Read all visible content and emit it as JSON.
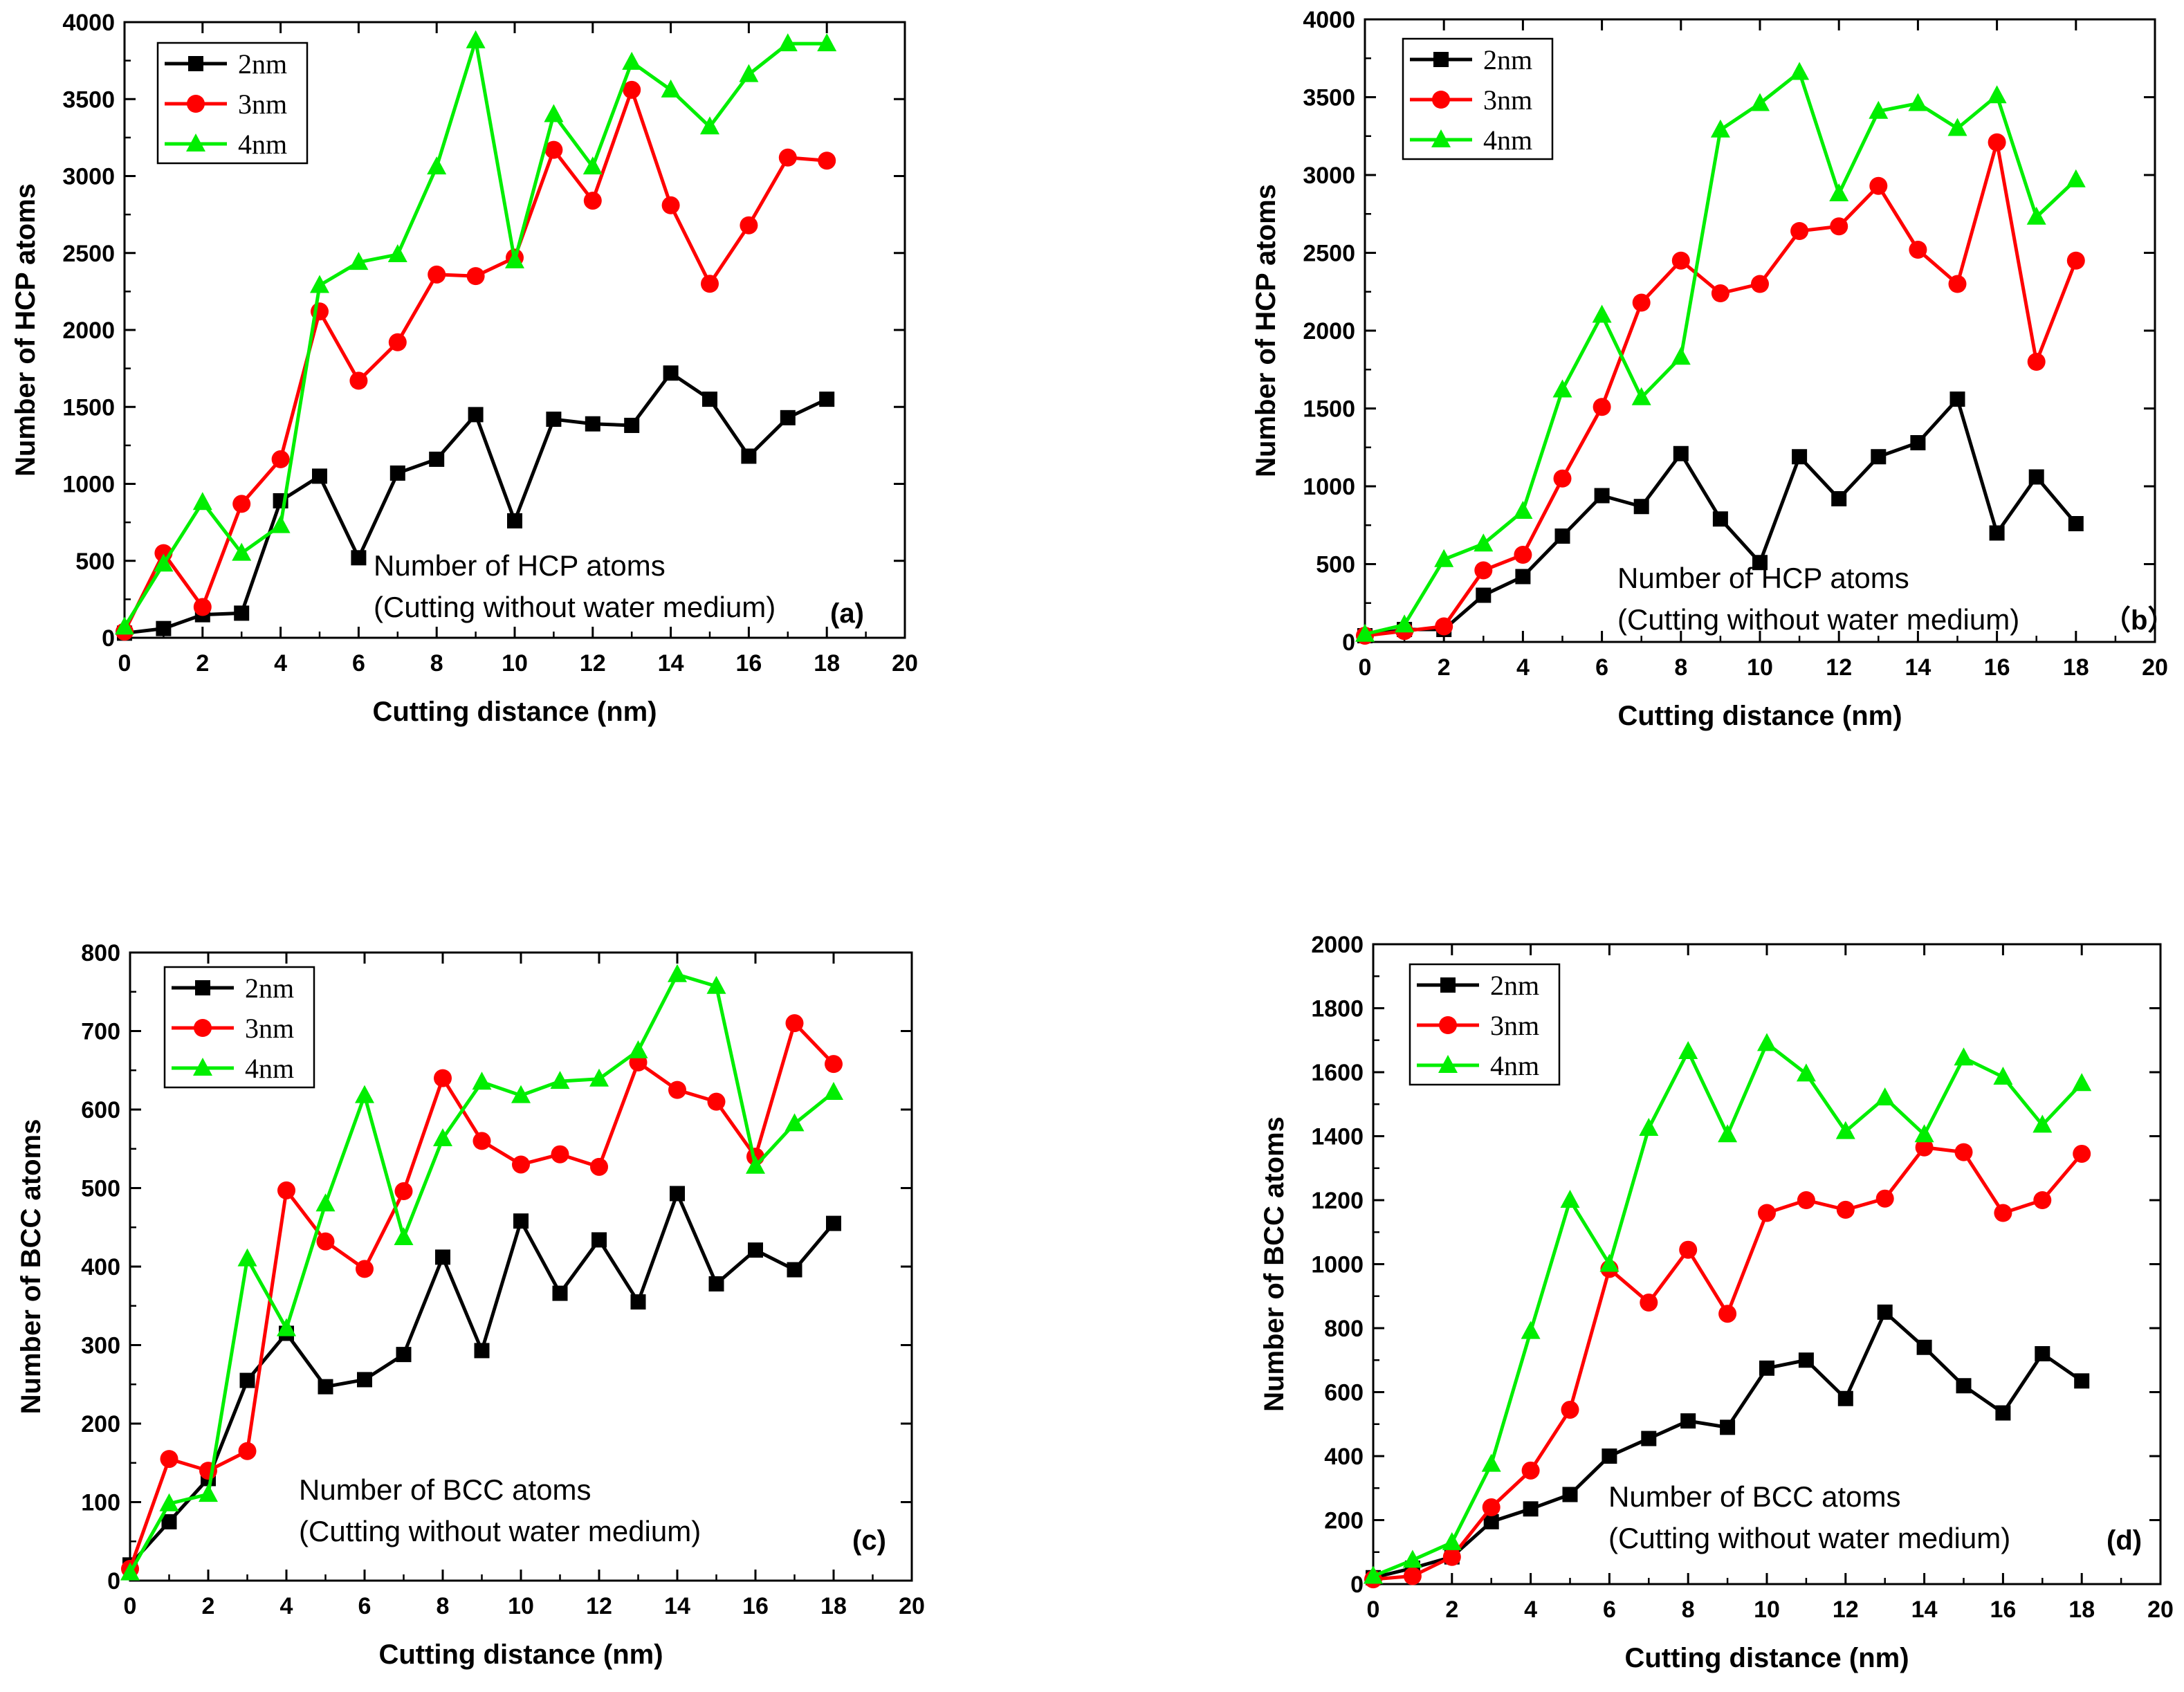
{
  "figure": {
    "colors": {
      "2nm": "#000000",
      "3nm": "#ff0000",
      "4nm": "#00ee00"
    }
  },
  "chart_data": [
    {
      "type": "line",
      "panel": "a",
      "title": "",
      "xlabel": "Cutting distance (nm)",
      "ylabel": "Number of HCP atoms",
      "xlim": [
        0,
        20
      ],
      "ylim": [
        0,
        4000
      ],
      "xticks": [
        0,
        2,
        4,
        6,
        8,
        10,
        12,
        14,
        16,
        18,
        20
      ],
      "yticks": [
        0,
        500,
        1000,
        1500,
        2000,
        2500,
        3000,
        3500,
        4000
      ],
      "annotation": [
        "Number of HCP atoms",
        "(Cutting without water medium)"
      ],
      "panel_label": "(a)",
      "legend_position": "top-left",
      "x": [
        0,
        1,
        2,
        3,
        4,
        5,
        6,
        7,
        8,
        9,
        10,
        11,
        12,
        13,
        14,
        15,
        16,
        17,
        18
      ],
      "series": [
        {
          "name": "2nm",
          "marker": "square",
          "color": "#000000",
          "values": [
            30,
            60,
            150,
            160,
            890,
            1050,
            520,
            1070,
            1160,
            1450,
            760,
            1420,
            1390,
            1380,
            1720,
            1550,
            1180,
            1430,
            1550
          ]
        },
        {
          "name": "3nm",
          "marker": "circle",
          "color": "#ff0000",
          "values": [
            40,
            550,
            200,
            870,
            1160,
            2120,
            1670,
            1920,
            2360,
            2350,
            2470,
            3170,
            2840,
            3560,
            2810,
            2300,
            2680,
            3120,
            3100
          ]
        },
        {
          "name": "4nm",
          "marker": "triangle",
          "color": "#00ee00",
          "values": [
            70,
            480,
            880,
            550,
            730,
            2290,
            2440,
            2490,
            3060,
            3880,
            2450,
            3400,
            3060,
            3740,
            3560,
            3320,
            3660,
            3860,
            3860
          ]
        }
      ]
    },
    {
      "type": "line",
      "panel": "b",
      "title": "",
      "xlabel": "Cutting distance (nm)",
      "ylabel": "Number of HCP atoms",
      "xlim": [
        0,
        20
      ],
      "ylim": [
        0,
        4000
      ],
      "xticks": [
        0,
        2,
        4,
        6,
        8,
        10,
        12,
        14,
        16,
        18,
        20
      ],
      "yticks": [
        0,
        500,
        1000,
        1500,
        2000,
        2500,
        3000,
        3500,
        4000
      ],
      "annotation": [
        "Number of HCP atoms",
        "(Cutting without water medium)"
      ],
      "panel_label": "（b）",
      "legend_position": "top-left",
      "x": [
        0,
        1,
        2,
        3,
        4,
        5,
        6,
        7,
        8,
        9,
        10,
        11,
        12,
        13,
        14,
        15,
        16,
        17,
        18
      ],
      "series": [
        {
          "name": "2nm",
          "marker": "square",
          "color": "#000000",
          "values": [
            40,
            80,
            80,
            300,
            420,
            680,
            940,
            870,
            1210,
            790,
            510,
            1190,
            920,
            1190,
            1280,
            1560,
            700,
            1060,
            760
          ]
        },
        {
          "name": "3nm",
          "marker": "circle",
          "color": "#ff0000",
          "values": [
            40,
            70,
            100,
            460,
            560,
            1050,
            1510,
            2180,
            2450,
            2240,
            2300,
            2640,
            2670,
            2930,
            2520,
            2300,
            3210,
            1800,
            2450
          ]
        },
        {
          "name": "4nm",
          "marker": "triangle",
          "color": "#00ee00",
          "values": [
            50,
            110,
            530,
            630,
            840,
            1620,
            2100,
            1570,
            1830,
            3290,
            3460,
            3660,
            2880,
            3410,
            3460,
            3300,
            3510,
            2730,
            2970
          ]
        }
      ]
    },
    {
      "type": "line",
      "panel": "c",
      "title": "",
      "xlabel": "Cutting distance (nm)",
      "ylabel": "Number of BCC atoms",
      "xlim": [
        0,
        20
      ],
      "ylim": [
        0,
        800
      ],
      "xticks": [
        0,
        2,
        4,
        6,
        8,
        10,
        12,
        14,
        16,
        18,
        20
      ],
      "yticks": [
        0,
        100,
        200,
        300,
        400,
        500,
        600,
        700,
        800
      ],
      "annotation": [
        "Number of BCC atoms",
        "(Cutting without water medium)"
      ],
      "panel_label": "(c)",
      "legend_position": "top-left",
      "x": [
        0,
        1,
        2,
        3,
        4,
        5,
        6,
        7,
        8,
        9,
        10,
        11,
        12,
        13,
        14,
        15,
        16,
        17,
        18
      ],
      "series": [
        {
          "name": "2nm",
          "marker": "square",
          "color": "#000000",
          "values": [
            20,
            75,
            130,
            255,
            315,
            247,
            256,
            288,
            412,
            293,
            458,
            366,
            434,
            355,
            493,
            378,
            421,
            396,
            455
          ]
        },
        {
          "name": "3nm",
          "marker": "circle",
          "color": "#ff0000",
          "values": [
            15,
            155,
            140,
            165,
            497,
            432,
            397,
            496,
            640,
            560,
            530,
            543,
            527,
            660,
            625,
            610,
            540,
            710,
            658
          ]
        },
        {
          "name": "4nm",
          "marker": "triangle",
          "color": "#00ee00",
          "values": [
            10,
            98,
            110,
            410,
            321,
            480,
            618,
            437,
            563,
            635,
            618,
            636,
            639,
            675,
            772,
            757,
            528,
            582,
            622
          ]
        }
      ]
    },
    {
      "type": "line",
      "panel": "d",
      "title": "",
      "xlabel": "Cutting distance (nm)",
      "ylabel": "Number of BCC atoms",
      "xlim": [
        0,
        20
      ],
      "ylim": [
        0,
        2000
      ],
      "xticks": [
        0,
        2,
        4,
        6,
        8,
        10,
        12,
        14,
        16,
        18,
        20
      ],
      "yticks": [
        0,
        200,
        400,
        600,
        800,
        1000,
        1200,
        1400,
        1600,
        1800,
        2000
      ],
      "annotation": [
        "Number of BCC atoms",
        "(Cutting without water medium)"
      ],
      "panel_label": "(d)",
      "legend_position": "top-left",
      "x": [
        0,
        1,
        2,
        3,
        4,
        5,
        6,
        7,
        8,
        9,
        10,
        11,
        12,
        13,
        14,
        15,
        16,
        17,
        18
      ],
      "series": [
        {
          "name": "2nm",
          "marker": "square",
          "color": "#000000",
          "values": [
            20,
            50,
            85,
            195,
            235,
            280,
            400,
            455,
            510,
            490,
            675,
            700,
            580,
            850,
            740,
            620,
            535,
            720,
            635
          ]
        },
        {
          "name": "3nm",
          "marker": "circle",
          "color": "#ff0000",
          "values": [
            15,
            25,
            85,
            240,
            355,
            545,
            985,
            880,
            1045,
            845,
            1160,
            1200,
            1170,
            1205,
            1365,
            1350,
            1160,
            1200,
            1345
          ]
        },
        {
          "name": "4nm",
          "marker": "triangle",
          "color": "#00ee00",
          "values": [
            25,
            75,
            130,
            375,
            790,
            1200,
            1000,
            1425,
            1665,
            1405,
            1690,
            1595,
            1415,
            1520,
            1405,
            1645,
            1585,
            1435,
            1565
          ]
        }
      ]
    }
  ]
}
